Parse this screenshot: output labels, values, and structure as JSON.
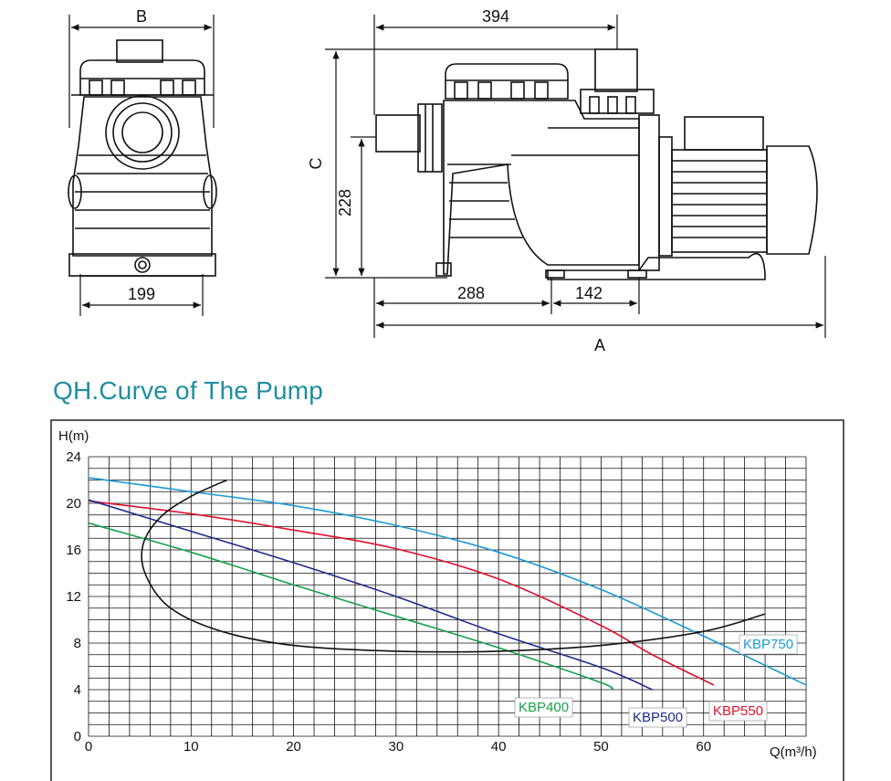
{
  "dimensions": {
    "front_width_label": "B",
    "front_base_label": "199",
    "side_top_label": "394",
    "side_height_label": "C",
    "side_inlet_height_label": "228",
    "side_base_left_label": "288",
    "side_base_right_label": "142",
    "side_length_label": "A"
  },
  "title": "QH.Curve of The Pump",
  "chart_data": {
    "type": "line",
    "xlabel": "Q(m³/h)",
    "ylabel": "H(m)",
    "xlim": [
      0,
      70
    ],
    "ylim": [
      0,
      24
    ],
    "x_ticks": [
      "0",
      "10",
      "20",
      "30",
      "40",
      "50",
      "60"
    ],
    "y_ticks": [
      "0",
      "4",
      "8",
      "12",
      "16",
      "20",
      "24"
    ],
    "grid": true,
    "series": [
      {
        "name": "KBP750",
        "color": "#1b9ad6",
        "points": [
          [
            0,
            22.2
          ],
          [
            10,
            21.0
          ],
          [
            20,
            19.8
          ],
          [
            30,
            18.1
          ],
          [
            40,
            15.8
          ],
          [
            50,
            12.6
          ],
          [
            60,
            8.6
          ],
          [
            70,
            4.4
          ]
        ]
      },
      {
        "name": "KBP550",
        "color": "#e0102d",
        "points": [
          [
            0,
            20.2
          ],
          [
            10,
            19.1
          ],
          [
            20,
            17.7
          ],
          [
            30,
            16.1
          ],
          [
            40,
            13.5
          ],
          [
            50,
            9.5
          ],
          [
            55,
            7.0
          ],
          [
            61,
            4.4
          ]
        ]
      },
      {
        "name": "KBP500",
        "color": "#1c2a8c",
        "points": [
          [
            0,
            20.3
          ],
          [
            10,
            17.6
          ],
          [
            20,
            14.9
          ],
          [
            30,
            12.0
          ],
          [
            40,
            8.8
          ],
          [
            50,
            5.9
          ],
          [
            55,
            4.0
          ]
        ]
      },
      {
        "name": "KBP400",
        "color": "#17a04a",
        "points": [
          [
            0,
            18.3
          ],
          [
            10,
            15.8
          ],
          [
            20,
            13.0
          ],
          [
            30,
            10.3
          ],
          [
            40,
            7.6
          ],
          [
            50,
            4.6
          ],
          [
            51,
            4.0
          ]
        ]
      },
      {
        "name": "",
        "color": "#111111",
        "points": [
          [
            13.5,
            22.0
          ],
          [
            10,
            20.6
          ],
          [
            7,
            18.8
          ],
          [
            5.3,
            16.4
          ],
          [
            5.6,
            13.8
          ],
          [
            8,
            11.0
          ],
          [
            13,
            9.0
          ],
          [
            20,
            7.8
          ],
          [
            30,
            7.3
          ],
          [
            40,
            7.3
          ],
          [
            50,
            7.8
          ],
          [
            60,
            9.0
          ],
          [
            66,
            10.5
          ]
        ]
      }
    ]
  }
}
